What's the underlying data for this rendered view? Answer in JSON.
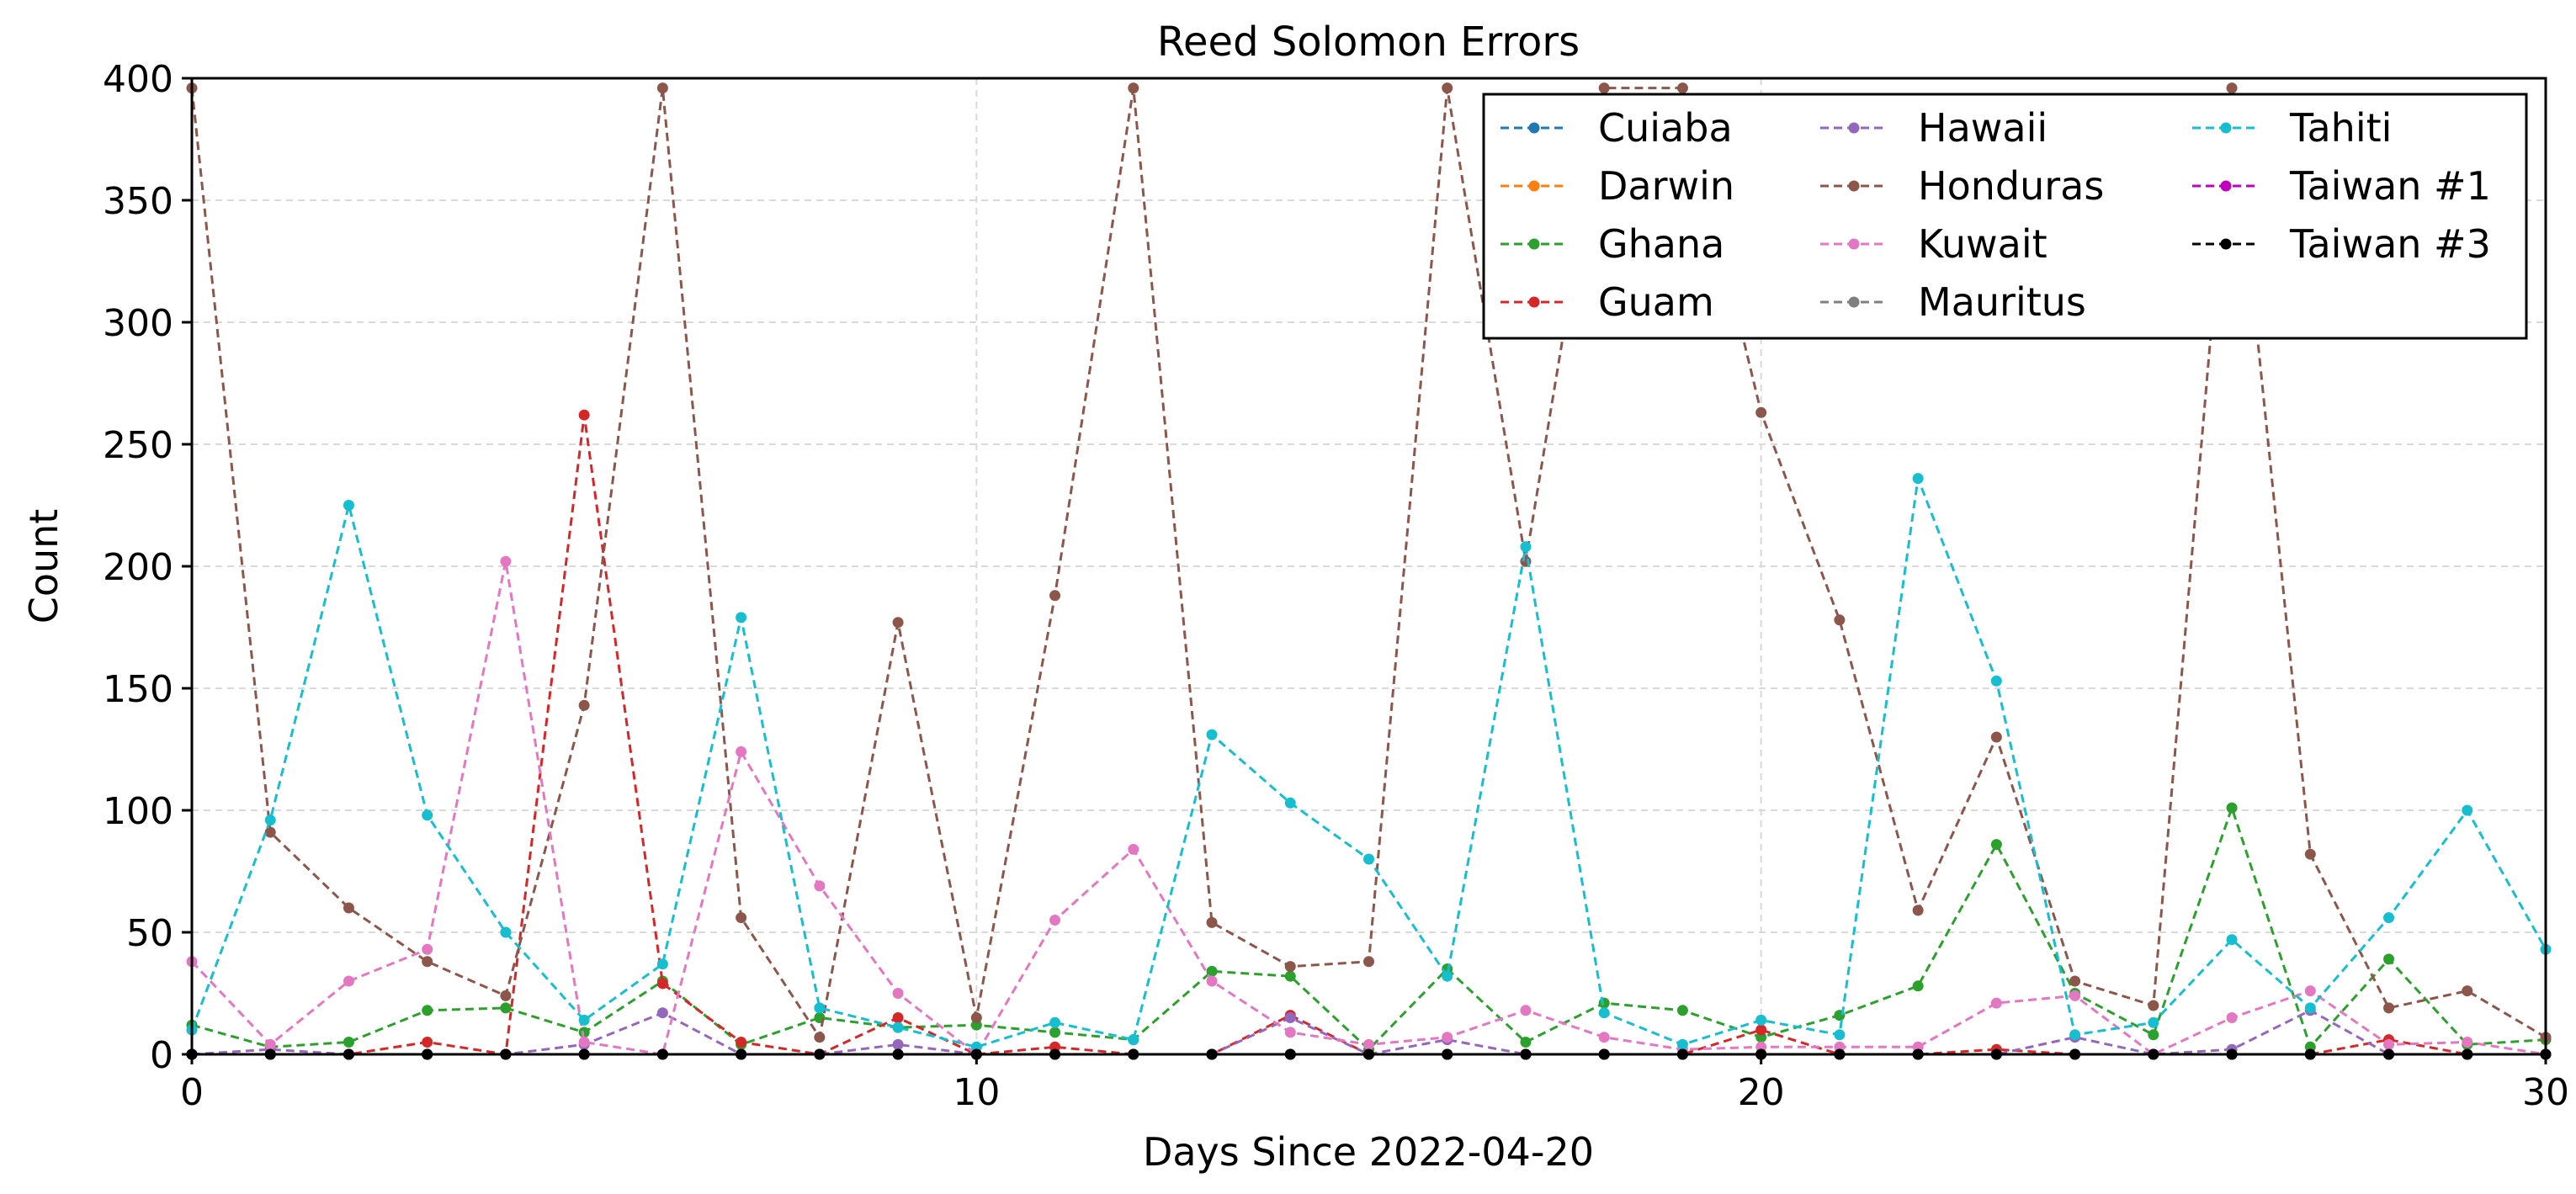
{
  "chart_data": {
    "type": "line",
    "title": "Reed Solomon Errors",
    "xlabel": "Days Since 2022-04-20",
    "ylabel": "Count",
    "xlim": [
      0,
      30
    ],
    "ylim": [
      0,
      400
    ],
    "xticks": [
      0,
      10,
      20,
      30
    ],
    "yticks": [
      0,
      50,
      100,
      150,
      200,
      250,
      300,
      350,
      400
    ],
    "grid": true,
    "legend_position": "upper-right",
    "legend_columns": 3,
    "x": [
      0,
      1,
      2,
      3,
      4,
      5,
      6,
      7,
      8,
      9,
      10,
      11,
      12,
      13,
      14,
      15,
      16,
      17,
      18,
      19,
      20,
      21,
      22,
      23,
      24,
      25,
      26,
      27,
      28,
      29,
      30
    ],
    "series": [
      {
        "name": "Cuiaba",
        "color": "#1f77b4",
        "values": [
          0,
          0,
          0,
          0,
          0,
          0,
          0,
          0,
          0,
          0,
          0,
          0,
          0,
          0,
          0,
          0,
          0,
          0,
          0,
          0,
          0,
          0,
          0,
          0,
          0,
          0,
          0,
          0,
          0,
          0,
          0
        ]
      },
      {
        "name": "Darwin",
        "color": "#ff7f0e",
        "values": [
          0,
          0,
          0,
          0,
          0,
          0,
          0,
          0,
          0,
          0,
          0,
          0,
          0,
          0,
          0,
          0,
          0,
          0,
          0,
          0,
          0,
          0,
          0,
          0,
          0,
          0,
          0,
          0,
          0,
          0,
          0
        ]
      },
      {
        "name": "Ghana",
        "color": "#2ca02c",
        "values": [
          12,
          3,
          5,
          18,
          19,
          9,
          30,
          4,
          15,
          11,
          12,
          9,
          6,
          34,
          32,
          2,
          35,
          5,
          21,
          18,
          7,
          16,
          28,
          86,
          25,
          8,
          101,
          3,
          39,
          4,
          6
        ]
      },
      {
        "name": "Guam",
        "color": "#d62728",
        "values": [
          0,
          0,
          0,
          5,
          0,
          262,
          29,
          5,
          0,
          15,
          0,
          3,
          0,
          0,
          16,
          0,
          0,
          0,
          0,
          0,
          10,
          0,
          0,
          2,
          0,
          0,
          0,
          0,
          6,
          0,
          0
        ]
      },
      {
        "name": "Hawaii",
        "color": "#9467bd",
        "values": [
          0,
          2,
          0,
          0,
          0,
          4,
          17,
          0,
          0,
          4,
          0,
          0,
          0,
          0,
          15,
          0,
          6,
          0,
          0,
          0,
          0,
          0,
          0,
          0,
          7,
          0,
          2,
          18,
          0,
          0,
          0
        ]
      },
      {
        "name": "Honduras",
        "color": "#8c564b",
        "values": [
          396,
          91,
          60,
          38,
          24,
          143,
          396,
          56,
          7,
          177,
          15,
          188,
          396,
          54,
          36,
          38,
          396,
          202,
          396,
          396,
          263,
          178,
          59,
          130,
          30,
          20,
          396,
          82,
          19,
          26,
          7
        ]
      },
      {
        "name": "Kuwait",
        "color": "#e377c2",
        "values": [
          38,
          4,
          30,
          43,
          202,
          5,
          0,
          124,
          69,
          25,
          0,
          55,
          84,
          30,
          9,
          4,
          7,
          18,
          7,
          2,
          3,
          3,
          3,
          21,
          24,
          0,
          15,
          26,
          4,
          5,
          0
        ]
      },
      {
        "name": "Mauritus",
        "color": "#7f7f7f",
        "values": [
          0,
          0,
          0,
          0,
          0,
          0,
          0,
          0,
          0,
          0,
          0,
          0,
          0,
          0,
          0,
          0,
          0,
          0,
          0,
          0,
          0,
          0,
          0,
          0,
          0,
          0,
          0,
          0,
          0,
          0,
          0
        ]
      },
      {
        "name": "Tahiti",
        "color": "#17becf",
        "values": [
          10,
          96,
          225,
          98,
          50,
          14,
          37,
          179,
          19,
          11,
          3,
          13,
          6,
          131,
          103,
          80,
          32,
          208,
          17,
          4,
          14,
          8,
          236,
          153,
          8,
          13,
          47,
          19,
          56,
          100,
          43
        ]
      },
      {
        "name": "Taiwan #1",
        "color": "#bf00bf",
        "values": [
          0,
          0,
          0,
          0,
          0,
          0,
          0,
          0,
          0,
          0,
          0,
          0,
          0,
          0,
          0,
          0,
          0,
          0,
          0,
          0,
          0,
          0,
          0,
          0,
          0,
          0,
          0,
          0,
          0,
          0,
          0
        ]
      },
      {
        "name": "Taiwan #3",
        "color": "#000000",
        "values": [
          0,
          0,
          0,
          0,
          0,
          0,
          0,
          0,
          0,
          0,
          0,
          0,
          0,
          0,
          0,
          0,
          0,
          0,
          0,
          0,
          0,
          0,
          0,
          0,
          0,
          0,
          0,
          0,
          0,
          0,
          0
        ]
      }
    ]
  }
}
